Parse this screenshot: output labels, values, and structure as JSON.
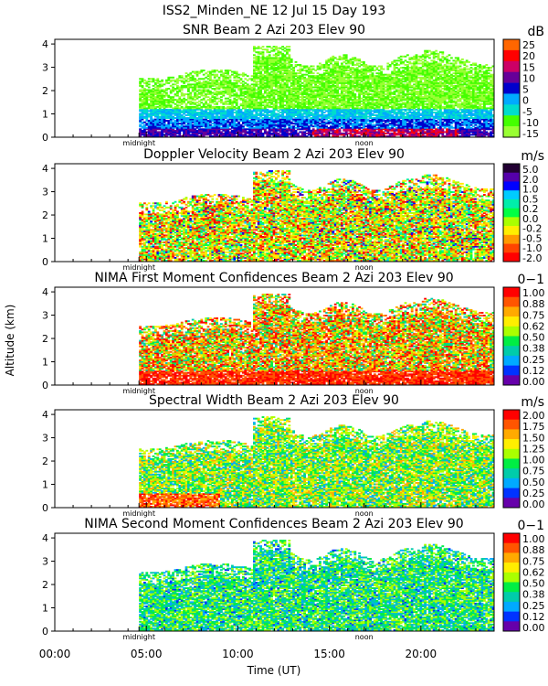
{
  "figure": {
    "title": "ISS2_Minden_NE  12 Jul 15 Day 193",
    "ylabel": "Altitude (km)",
    "xlabel": "Time (UT)",
    "x_ticks": [
      "00:00",
      "05:00",
      "10:00",
      "15:00",
      "20:00"
    ],
    "x_tick_hours": [
      0,
      5,
      10,
      15,
      20
    ],
    "xlim_hours": [
      0,
      24
    ],
    "midnight_label": "midnight",
    "noon_label": "noon",
    "midnight_hour": 4.6,
    "noon_hour": 16.9,
    "data_start_hour": 4.6
  },
  "chart_data": [
    {
      "type": "heatmap",
      "title": "SNR Beam 2 Azi 203 Elev 90",
      "unit": "dB",
      "ylim": [
        0,
        4.2
      ],
      "y_ticks": [
        "0",
        "1",
        "2",
        "3",
        "4"
      ],
      "colorbar_labels": [
        "25",
        "20",
        "15",
        "10",
        "5",
        "0",
        "-5",
        "-10",
        "-15"
      ],
      "colors": [
        "#ff6600",
        "#ff0000",
        "#cc0066",
        "#660099",
        "#0000cc",
        "#00aaff",
        "#00ddcc",
        "#44ff00",
        "#99ff33"
      ],
      "profile": "snr"
    },
    {
      "type": "heatmap",
      "title": "Doppler Velocity Beam 2 Azi 203 Elev 90",
      "unit": "m/s",
      "ylim": [
        0,
        4.2
      ],
      "y_ticks": [
        "0",
        "1",
        "2",
        "3",
        "4"
      ],
      "colorbar_labels": [
        "5.0",
        "2.0",
        "1.0",
        "0.5",
        "0.2",
        "0.0",
        "-0.2",
        "-0.5",
        "-1.0",
        "-2.0"
      ],
      "colors": [
        "#220033",
        "#5500aa",
        "#0000ff",
        "#00ccff",
        "#00eeaa",
        "#00ff44",
        "#aaff00",
        "#ffee00",
        "#ff9900",
        "#ff4400",
        "#ff0000"
      ],
      "profile": "doppler"
    },
    {
      "type": "heatmap",
      "title": "NIMA First Moment Confidences Beam 2 Azi 203 Elev 90",
      "unit": "0−1",
      "ylim": [
        0,
        4.2
      ],
      "y_ticks": [
        "0",
        "1",
        "2",
        "3",
        "4"
      ],
      "colorbar_labels": [
        "1.00",
        "0.88",
        "0.75",
        "0.62",
        "0.50",
        "0.38",
        "0.25",
        "0.12",
        "0.00"
      ],
      "colors": [
        "#ff0000",
        "#ff5500",
        "#ffaa00",
        "#ffee00",
        "#aaff00",
        "#00ee44",
        "#00ccaa",
        "#00aaff",
        "#0033ff",
        "#6600aa"
      ],
      "profile": "conf1"
    },
    {
      "type": "heatmap",
      "title": "Spectral Width Beam 2 Azi 203 Elev 90",
      "unit": "m/s",
      "ylim": [
        0,
        4.2
      ],
      "y_ticks": [
        "0",
        "1",
        "2",
        "3",
        "4"
      ],
      "colorbar_labels": [
        "2.00",
        "1.75",
        "1.50",
        "1.25",
        "1.00",
        "0.75",
        "0.50",
        "0.25",
        "0.00"
      ],
      "colors": [
        "#ff0000",
        "#ff5500",
        "#ffaa00",
        "#ffee00",
        "#aaff00",
        "#00ee44",
        "#00ccaa",
        "#00aaff",
        "#0033ff",
        "#6600aa"
      ],
      "profile": "width"
    },
    {
      "type": "heatmap",
      "title": "NIMA Second Moment Confidences Beam 2 Azi 203 Elev 90",
      "unit": "0−1",
      "ylim": [
        0,
        4.2
      ],
      "y_ticks": [
        "0",
        "1",
        "2",
        "3",
        "4"
      ],
      "colorbar_labels": [
        "1.00",
        "0.88",
        "0.75",
        "0.62",
        "0.50",
        "0.38",
        "0.25",
        "0.12",
        "0.00"
      ],
      "colors": [
        "#ff0000",
        "#ff5500",
        "#ffaa00",
        "#ffee00",
        "#aaff00",
        "#00ee44",
        "#00ccaa",
        "#00aaff",
        "#0033ff",
        "#6600aa"
      ],
      "profile": "conf2"
    }
  ]
}
